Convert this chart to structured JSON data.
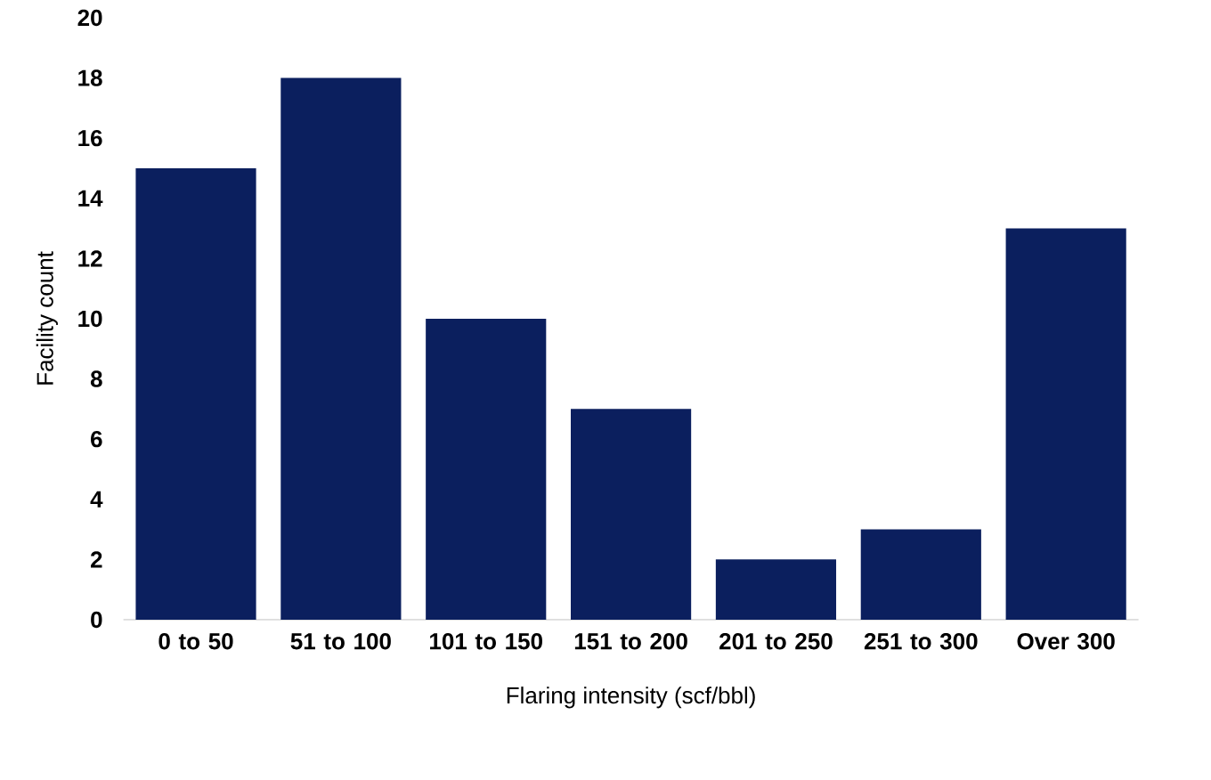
{
  "chart_data": {
    "type": "bar",
    "xlabel": "Flaring intensity (scf/bbl)",
    "ylabel": "Facility count",
    "categories": [
      "0 to 50",
      "51 to 100",
      "101 to 150",
      "151 to 200",
      "201 to 250",
      "251 to 300",
      "Over 300"
    ],
    "values": [
      15,
      18,
      10,
      7,
      2,
      3,
      13
    ],
    "color": "#0b1f5e",
    "ylim": [
      0,
      20
    ],
    "yticks": [
      0,
      2,
      4,
      6,
      8,
      10,
      12,
      14,
      16,
      18,
      20
    ]
  }
}
